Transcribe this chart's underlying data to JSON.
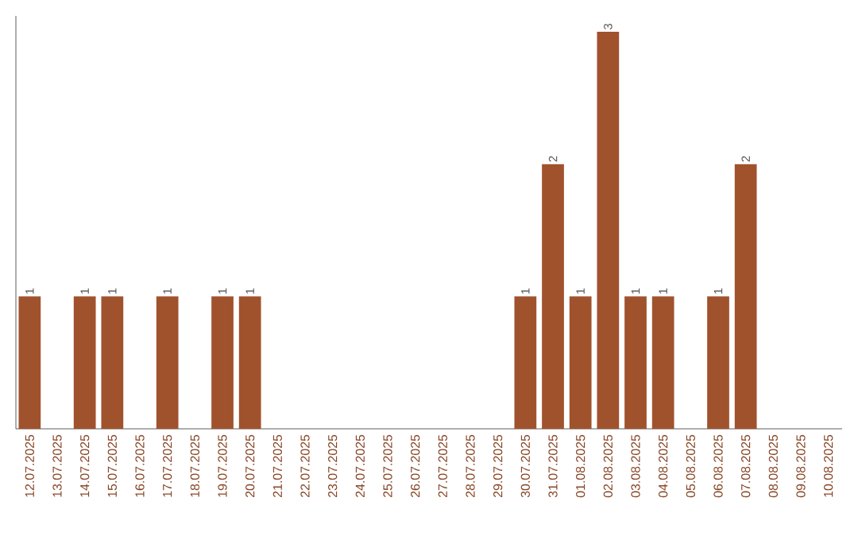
{
  "chart_data": {
    "type": "bar",
    "color": "#a0522d",
    "categories": [
      "12.07.2025",
      "13.07.2025",
      "14.07.2025",
      "15.07.2025",
      "16.07.2025",
      "17.07.2025",
      "18.07.2025",
      "19.07.2025",
      "20.07.2025",
      "21.07.2025",
      "22.07.2025",
      "23.07.2025",
      "24.07.2025",
      "25.07.2025",
      "26.07.2025",
      "27.07.2025",
      "28.07.2025",
      "29.07.2025",
      "30.07.2025",
      "31.07.2025",
      "01.08.2025",
      "02.08.2025",
      "03.08.2025",
      "04.08.2025",
      "05.08.2025",
      "06.08.2025",
      "07.08.2025",
      "08.08.2025",
      "09.08.2025",
      "10.08.2025"
    ],
    "values": [
      1,
      0,
      1,
      1,
      0,
      1,
      0,
      1,
      1,
      0,
      0,
      0,
      0,
      0,
      0,
      0,
      0,
      0,
      1,
      2,
      1,
      3,
      1,
      1,
      0,
      1,
      2,
      0,
      0,
      0
    ],
    "value_labels": [
      "1",
      null,
      "1",
      "1",
      null,
      "1",
      null,
      "1",
      "1",
      null,
      null,
      null,
      null,
      null,
      null,
      null,
      null,
      null,
      "1",
      "2",
      "1",
      "3",
      "1",
      "1",
      null,
      "1",
      "2",
      null,
      null,
      null
    ]
  }
}
